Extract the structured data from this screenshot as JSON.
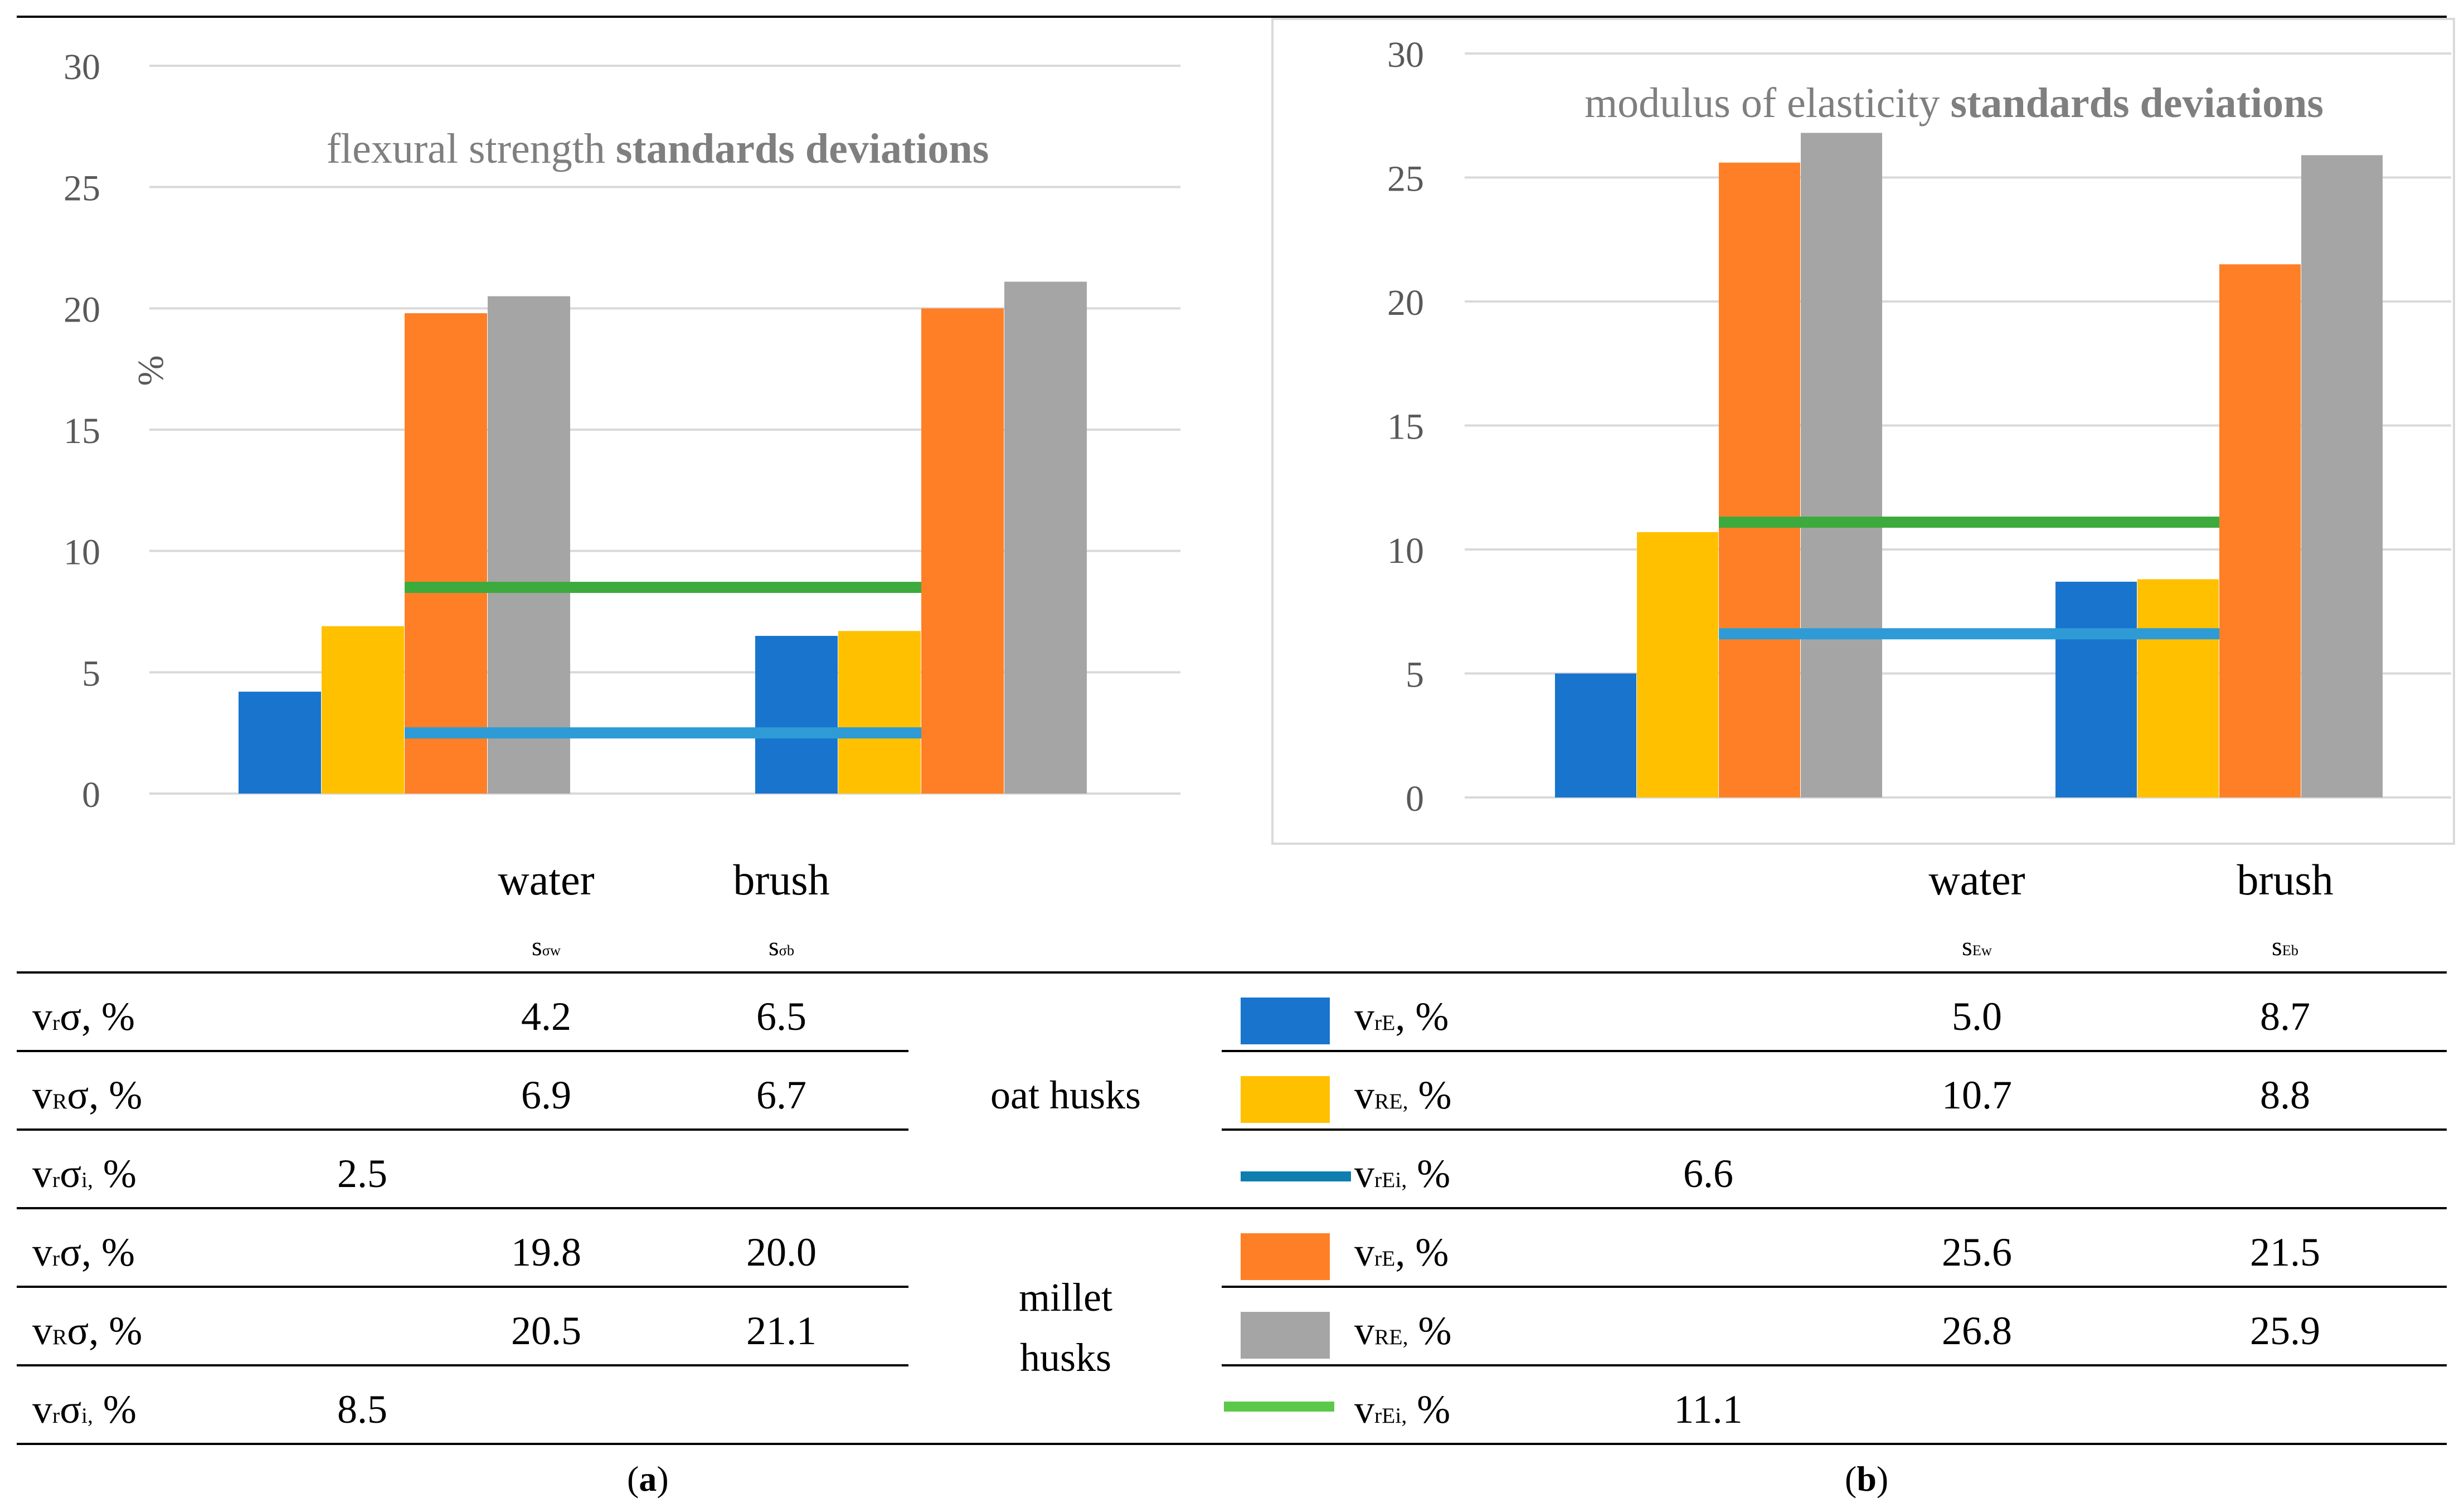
{
  "chart_data": [
    {
      "type": "bar",
      "title_normal": "flexural strength ",
      "title_bold": "standards deviations",
      "ylabel": "%",
      "ylim": [
        0,
        30
      ],
      "ytick_labels": [
        "0",
        "5",
        "10",
        "15",
        "20",
        "25",
        "30"
      ],
      "categories": [
        "water",
        "brush"
      ],
      "series": [
        {
          "name": "oat husks vrσ",
          "color": "#1874CD",
          "values": [
            4.2,
            6.5
          ]
        },
        {
          "name": "oat husks vRσ",
          "color": "#FFC000",
          "values": [
            6.9,
            6.7
          ]
        },
        {
          "name": "millet husks vrσ",
          "color": "#FF7F27",
          "values": [
            19.8,
            20.0
          ]
        },
        {
          "name": "millet husks vRσ",
          "color": "#A5A5A5",
          "values": [
            20.5,
            21.1
          ]
        }
      ],
      "lines": [
        {
          "name": "oat husks vrσi",
          "color": "#2E9BD6",
          "value": 2.5
        },
        {
          "name": "millet husks vrσi",
          "color": "#3DAA3D",
          "value": 8.5
        }
      ]
    },
    {
      "type": "bar",
      "title_normal": "modulus of elasticity ",
      "title_bold": "standards deviations",
      "ylim": [
        0,
        30
      ],
      "ytick_labels": [
        "0",
        "5",
        "10",
        "15",
        "20",
        "25",
        "30"
      ],
      "categories": [
        "water",
        "brush"
      ],
      "series": [
        {
          "name": "oat husks vrE",
          "color": "#1874CD",
          "values": [
            5.0,
            8.7
          ]
        },
        {
          "name": "oat husks vRE",
          "color": "#FFC000",
          "values": [
            10.7,
            8.8
          ]
        },
        {
          "name": "millet husks vrE",
          "color": "#FF7F27",
          "values": [
            25.6,
            21.5
          ]
        },
        {
          "name": "millet husks vRE",
          "color": "#A5A5A5",
          "values": [
            26.8,
            25.9
          ]
        }
      ],
      "lines": [
        {
          "name": "oat husks vrEi",
          "color": "#2E9BD6",
          "value": 6.6
        },
        {
          "name": "millet husks vrEi",
          "color": "#3DAA3D",
          "value": 11.1
        }
      ]
    }
  ],
  "table": {
    "cat_water": "water",
    "cat_brush": "brush",
    "a": {
      "sub_w_main": "s",
      "sub_w_sub": "σw",
      "sub_b_main": "s",
      "sub_b_sub": "σb",
      "rows": [
        {
          "l_main": "v",
          "l_sub": "r",
          "l_tail": "σ, %",
          "w": "4.2",
          "b": "6.5",
          "i": ""
        },
        {
          "l_main": "v",
          "l_sub": "R",
          "l_tail": "σ, %",
          "w": "6.9",
          "b": "6.7",
          "i": ""
        },
        {
          "l_main": "v",
          "l_sub": "r",
          "l_tail": "σ",
          "l_sub2": "i,",
          "l_tail2": " %",
          "w": "",
          "b": "",
          "i": "2.5"
        },
        {
          "l_main": "v",
          "l_sub": "r",
          "l_tail": "σ, %",
          "w": "19.8",
          "b": "20.0",
          "i": ""
        },
        {
          "l_main": "v",
          "l_sub": "R",
          "l_tail": "σ, %",
          "w": "20.5",
          "b": "21.1",
          "i": ""
        },
        {
          "l_main": "v",
          "l_sub": "r",
          "l_tail": "σ",
          "l_sub2": "i,",
          "l_tail2": " %",
          "w": "",
          "b": "",
          "i": "8.5"
        }
      ]
    },
    "group_oat": "oat husks",
    "group_millet_1": "millet",
    "group_millet_2": "husks",
    "b": {
      "sub_w_main": "s",
      "sub_w_sub": "Ew",
      "sub_b_main": "s",
      "sub_b_sub": "Eb",
      "rows": [
        {
          "l_main": "v",
          "l_sub": "rE",
          "l_tail": ", %",
          "w": "5.0",
          "b": "8.7",
          "i": ""
        },
        {
          "l_main": "v",
          "l_sub": "RE,",
          "l_tail": " %",
          "w": "10.7",
          "b": "8.8",
          "i": ""
        },
        {
          "l_main": "v",
          "l_sub": "rEi,",
          "l_tail": " %",
          "w": "",
          "b": "",
          "i": "6.6"
        },
        {
          "l_main": "v",
          "l_sub": "rE",
          "l_tail": ", %",
          "w": "25.6",
          "b": "21.5",
          "i": ""
        },
        {
          "l_main": "v",
          "l_sub": "RE,",
          "l_tail": " %",
          "w": "26.8",
          "b": "25.9",
          "i": ""
        },
        {
          "l_main": "v",
          "l_sub": "rEi,",
          "l_tail": " %",
          "w": "",
          "b": "",
          "i": "11.1"
        }
      ]
    },
    "caption_a": "(a)",
    "caption_b": "(b)",
    "caption_a_letter": "a",
    "caption_b_letter": "b"
  },
  "colors": {
    "blue": "#1874CD",
    "yellow": "#FFC000",
    "orange": "#FF7F27",
    "grey": "#A5A5A5",
    "line_blue": "#2E9BD6",
    "line_green": "#3DAA3D",
    "line_blue_legend": "#0E7DB0",
    "line_green_legend": "#5CC84A"
  }
}
